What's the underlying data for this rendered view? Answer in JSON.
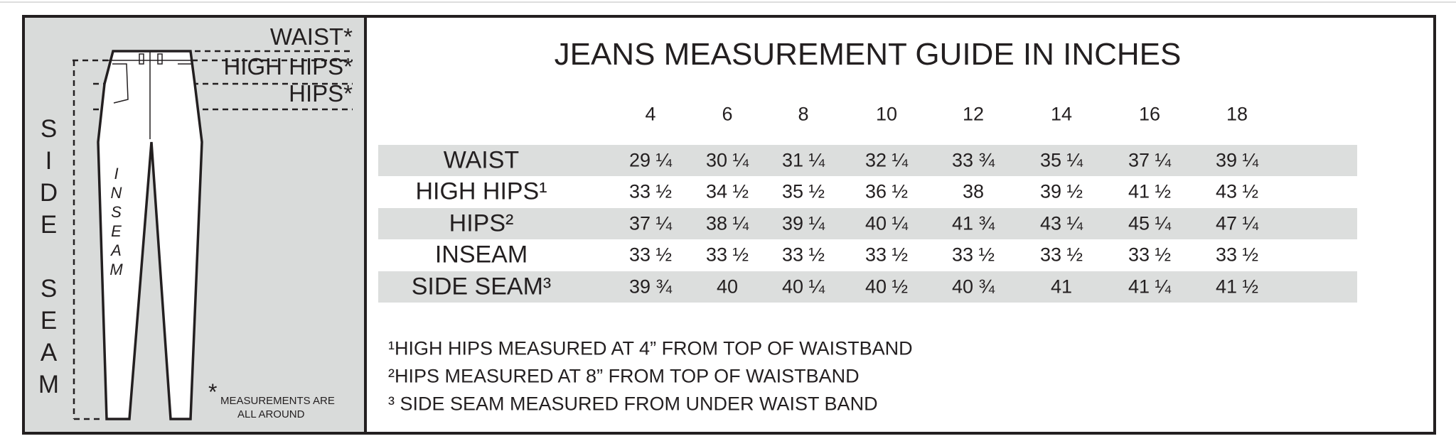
{
  "diagram": {
    "labels": [
      "WAIST*",
      "HIGH HIPS*",
      "HIPS*"
    ],
    "side_seam": "SIDE SEAM",
    "inseam": "INSEAM",
    "note_mark": "*",
    "note": [
      "MEASUREMENTS ARE",
      "ALL AROUND"
    ]
  },
  "header": {
    "title": "JEANS MEASUREMENT GUIDE IN INCHES"
  },
  "table": {
    "columns": [
      "4",
      "6",
      "8",
      "10",
      "12",
      "14",
      "16",
      "18"
    ],
    "rows": [
      {
        "label": "WAIST",
        "cells": [
          "29 ¼",
          "30 ¼",
          "31 ¼",
          "32 ¼",
          "33 ¾",
          "35 ¼",
          "37 ¼",
          "39 ¼"
        ]
      },
      {
        "label": "HIGH HIPS¹",
        "cells": [
          "33 ½",
          "34 ½",
          "35 ½",
          "36 ½",
          "38",
          "39 ½",
          "41 ½",
          "43 ½"
        ]
      },
      {
        "label": "HIPS²",
        "cells": [
          "37 ¼",
          "38 ¼",
          "39 ¼",
          "40 ¼",
          "41 ¾",
          "43 ¼",
          "45 ¼",
          "47 ¼"
        ]
      },
      {
        "label": "INSEAM",
        "cells": [
          "33 ½",
          "33 ½",
          "33 ½",
          "33 ½",
          "33 ½",
          "33 ½",
          "33 ½",
          "33 ½"
        ]
      },
      {
        "label": "SIDE SEAM³",
        "cells": [
          "39 ¾",
          "40",
          "40 ¼",
          "40 ½",
          "40 ¾",
          "41",
          "41 ¼",
          "41 ½"
        ]
      }
    ]
  },
  "footnotes": [
    "¹HIGH HIPS MEASURED AT 4” FROM TOP OF WAISTBAND",
    "²HIPS MEASURED AT 8” FROM TOP OF WAISTBAND",
    "³ SIDE SEAM MEASURED FROM UNDER WAIST BAND"
  ]
}
